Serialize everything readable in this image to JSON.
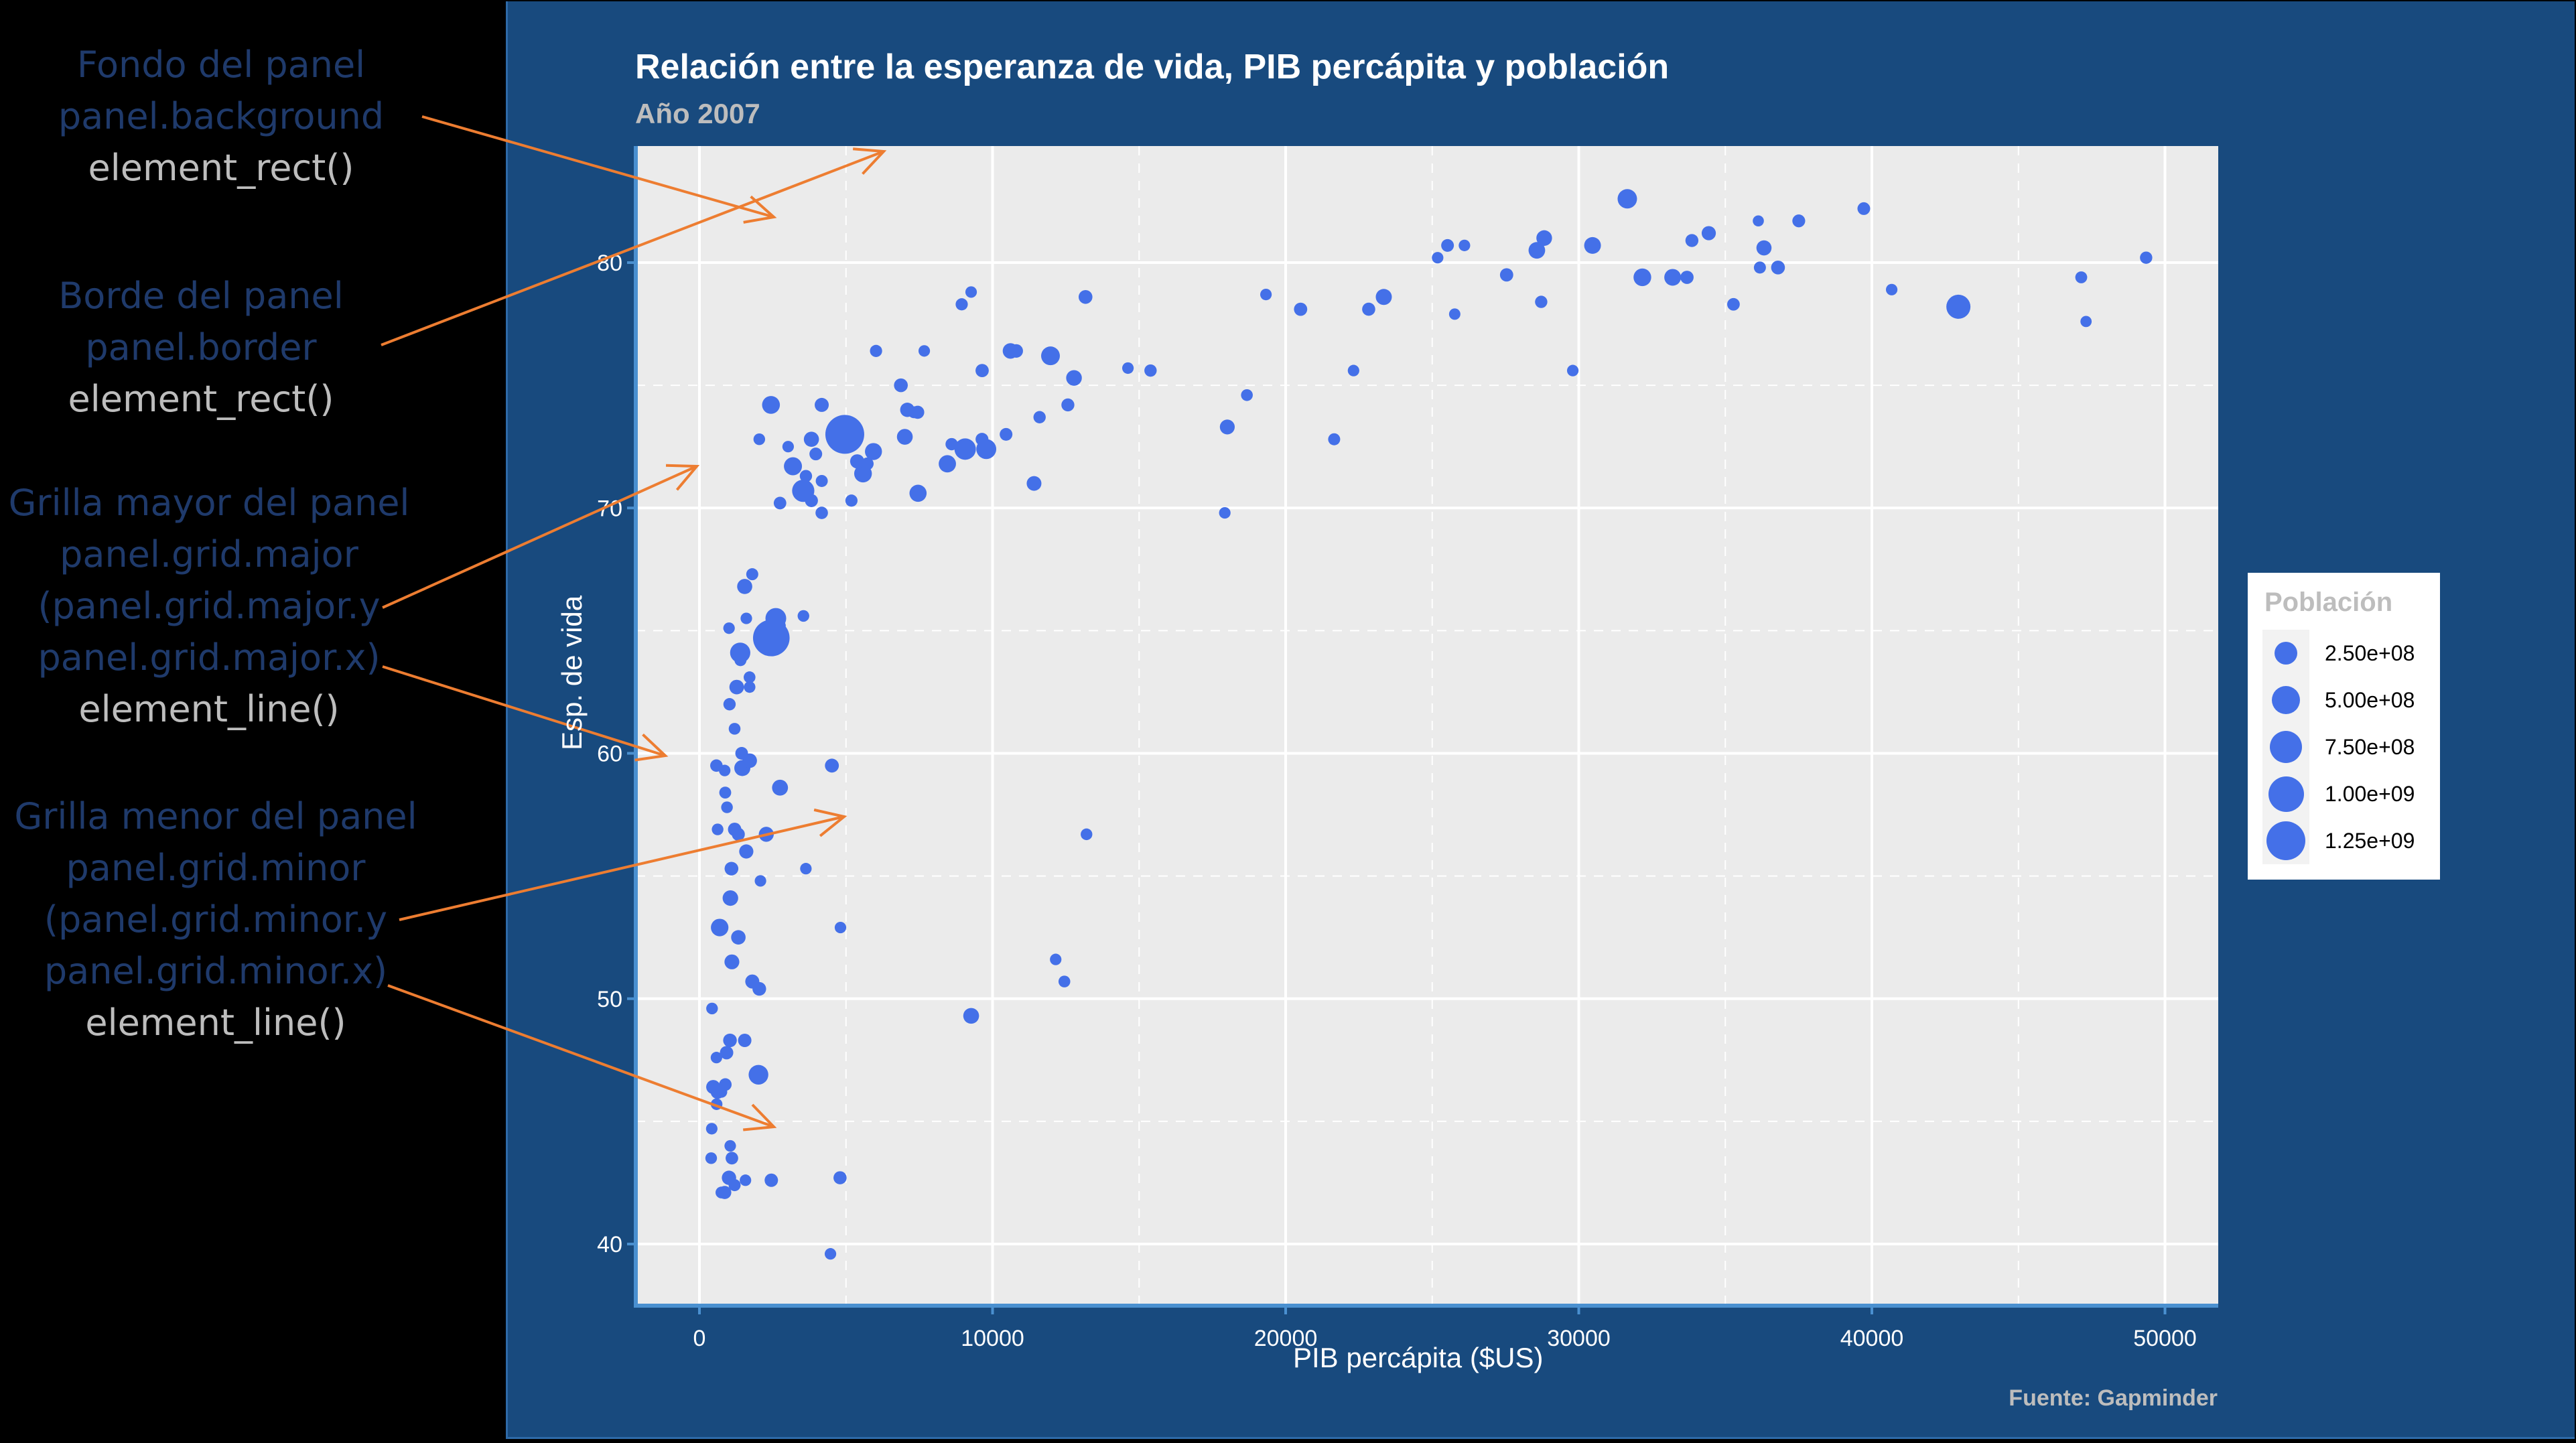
{
  "annotations": [
    {
      "title": "Fondo del panel",
      "param": "panel.background",
      "fn": "element_rect()"
    },
    {
      "title": "Borde del panel",
      "param": "panel.border",
      "fn": "element_rect()"
    },
    {
      "title": "Grilla mayor del panel",
      "param": "panel.grid.major",
      "param2": "(panel.grid.major.y",
      "param3": "panel.grid.major.x)",
      "fn": "element_line()"
    },
    {
      "title": "Grilla menor del panel",
      "param": "panel.grid.minor",
      "param2": "(panel.grid.minor.y",
      "param3": "panel.grid.minor.x)",
      "fn": "element_line()"
    }
  ],
  "arrows": [
    {
      "from": [
        630,
        174
      ],
      "to": [
        1155,
        324
      ]
    },
    {
      "from": [
        569,
        515
      ],
      "to": [
        1319,
        226
      ]
    },
    {
      "from": [
        571,
        907
      ],
      "to": [
        1040,
        696
      ]
    },
    {
      "from": [
        571,
        995
      ],
      "to": [
        993,
        1128
      ]
    },
    {
      "from": [
        596,
        1373
      ],
      "to": [
        1260,
        1219
      ]
    },
    {
      "from": [
        579,
        1471
      ],
      "to": [
        1155,
        1682
      ]
    }
  ],
  "colors": {
    "slide_bg": "#184a7e",
    "panel_bg": "#ebebeb",
    "grid": "#ffffff",
    "axis_line": "#4a90d0",
    "point": "#4470e8",
    "arrow": "#ed7d31"
  },
  "legend": {
    "title": "Población",
    "items": [
      {
        "label": "2.50e+08",
        "value": 250000000
      },
      {
        "label": "5.00e+08",
        "value": 500000000
      },
      {
        "label": "7.50e+08",
        "value": 750000000
      },
      {
        "label": "1.00e+09",
        "value": 1000000000
      },
      {
        "label": "1.25e+09",
        "value": 1250000000
      }
    ]
  },
  "chart_data": {
    "type": "scatter",
    "title": "Relación entre la esperanza de vida, PIB percápita y población",
    "subtitle": "Año 2007",
    "caption": "Fuente: Gapminder",
    "xlabel": "PIB percápita ($US)",
    "ylabel": "Esp. de vida",
    "size_legend_title": "Población",
    "xlim": [
      -2200,
      52000
    ],
    "ylim": [
      37.4,
      84.7
    ],
    "x_ticks": [
      0,
      10000,
      20000,
      30000,
      40000,
      50000
    ],
    "x_tick_labels": [
      "0",
      "10000",
      "20000",
      "30000",
      "40000",
      "50000"
    ],
    "y_ticks": [
      40,
      50,
      60,
      70,
      80
    ],
    "y_tick_labels": [
      "40",
      "50",
      "60",
      "70",
      "80"
    ],
    "x_minor": [
      5000,
      15000,
      25000,
      35000,
      45000
    ],
    "y_minor": [
      45,
      55,
      65,
      75
    ],
    "grid": true,
    "legend_position": "right",
    "points": [
      {
        "x": 4959,
        "y": 73.0,
        "pop": 1318683096
      },
      {
        "x": 2452,
        "y": 64.7,
        "pop": 1110396331
      },
      {
        "x": 42952,
        "y": 78.2,
        "pop": 301139947
      },
      {
        "x": 3541,
        "y": 70.7,
        "pop": 223547000
      },
      {
        "x": 9066,
        "y": 72.4,
        "pop": 190010647
      },
      {
        "x": 2606,
        "y": 65.5,
        "pop": 169270617
      },
      {
        "x": 1391,
        "y": 64.1,
        "pop": 150448339
      },
      {
        "x": 2014,
        "y": 46.9,
        "pop": 135031164
      },
      {
        "x": 31656,
        "y": 82.6,
        "pop": 127467972
      },
      {
        "x": 11977,
        "y": 76.2,
        "pop": 108700891
      },
      {
        "x": 9786,
        "y": 72.4,
        "pop": 141000000
      },
      {
        "x": 3190,
        "y": 71.7,
        "pop": 91077287
      },
      {
        "x": 2441,
        "y": 74.2,
        "pop": 85262356
      },
      {
        "x": 5581,
        "y": 71.4,
        "pop": 80264543
      },
      {
        "x": 690,
        "y": 52.9,
        "pop": 76511887
      },
      {
        "x": 8458,
        "y": 71.8,
        "pop": 71158647
      },
      {
        "x": 32170,
        "y": 79.4,
        "pop": 82400996
      },
      {
        "x": 7458,
        "y": 70.6,
        "pop": 69453570
      },
      {
        "x": 5937,
        "y": 72.3,
        "pop": 65068149
      },
      {
        "x": 30470,
        "y": 80.7,
        "pop": 61083916
      },
      {
        "x": 33203,
        "y": 79.4,
        "pop": 60776238
      },
      {
        "x": 28570,
        "y": 80.5,
        "pop": 58147733
      },
      {
        "x": 2749,
        "y": 58.6,
        "pop": 46000000
      },
      {
        "x": 23348,
        "y": 78.6,
        "pop": 49044790
      },
      {
        "x": 9270,
        "y": 49.3,
        "pop": 43997828
      },
      {
        "x": 7007,
        "y": 72.9,
        "pop": 44227550
      },
      {
        "x": 1463,
        "y": 59.4,
        "pop": 47761980
      },
      {
        "x": 28821,
        "y": 81.0,
        "pop": 40448191
      },
      {
        "x": 12779,
        "y": 75.3,
        "pop": 40301927
      },
      {
        "x": 1056,
        "y": 54.1,
        "pop": 38139640
      },
      {
        "x": 36319,
        "y": 80.6,
        "pop": 33390141
      },
      {
        "x": 1544,
        "y": 66.8,
        "pop": 31889923
      },
      {
        "x": 10612,
        "y": 76.4,
        "pop": 38518241
      },
      {
        "x": 2452,
        "y": 42.6,
        "pop": 12000000
      },
      {
        "x": 1107,
        "y": 51.5,
        "pop": 29170398
      },
      {
        "x": 1008,
        "y": 42.7,
        "pop": 22000000
      },
      {
        "x": 11416,
        "y": 71.0,
        "pop": 27000000
      },
      {
        "x": 3820,
        "y": 72.8,
        "pop": 33000000
      },
      {
        "x": 2280,
        "y": 56.7,
        "pop": 30000000
      },
      {
        "x": 1271,
        "y": 62.7,
        "pop": 26000000
      },
      {
        "x": 34435,
        "y": 81.2,
        "pop": 20434176
      },
      {
        "x": 18009,
        "y": 73.3,
        "pop": 28901790
      },
      {
        "x": 1598,
        "y": 56.0,
        "pop": 20000000
      },
      {
        "x": 1328,
        "y": 52.5,
        "pop": 23000000
      },
      {
        "x": 7092,
        "y": 74.0,
        "pop": 22276056
      },
      {
        "x": 5383,
        "y": 71.9,
        "pop": 20000000
      },
      {
        "x": 4172,
        "y": 74.2,
        "pop": 19000000
      },
      {
        "x": 1714,
        "y": 59.7,
        "pop": 25000000
      },
      {
        "x": 470,
        "y": 46.4,
        "pop": 19000000
      },
      {
        "x": 1803,
        "y": 50.7,
        "pop": 19000000
      },
      {
        "x": 619,
        "y": 46.2,
        "pop": 17000000
      },
      {
        "x": 13172,
        "y": 78.6,
        "pop": 16000000
      },
      {
        "x": 36798,
        "y": 79.8,
        "pop": 16500000
      },
      {
        "x": 1091,
        "y": 55.3,
        "pop": 15000000
      },
      {
        "x": 4519,
        "y": 59.5,
        "pop": 17000000
      },
      {
        "x": 6873,
        "y": 75.0,
        "pop": 16000000
      },
      {
        "x": 1042,
        "y": 48.3,
        "pop": 14000000
      },
      {
        "x": 2042,
        "y": 50.4,
        "pop": 15000000
      },
      {
        "x": 10808,
        "y": 76.4,
        "pop": 13000000
      },
      {
        "x": 1201,
        "y": 56.9,
        "pop": 12000000
      },
      {
        "x": 1545,
        "y": 48.3,
        "pop": 12000000
      },
      {
        "x": 926,
        "y": 47.8,
        "pop": 12000000
      },
      {
        "x": 863,
        "y": 42.1,
        "pop": 10000000
      },
      {
        "x": 9645,
        "y": 75.6,
        "pop": 11000000
      },
      {
        "x": 33692,
        "y": 79.4,
        "pop": 10392226
      },
      {
        "x": 27538,
        "y": 79.5,
        "pop": 10706290
      },
      {
        "x": 22833,
        "y": 78.1,
        "pop": 10228744
      },
      {
        "x": 20510,
        "y": 78.1,
        "pop": 10642836
      },
      {
        "x": 18008,
        "y": 73.3,
        "pop": 9956108
      },
      {
        "x": 33860,
        "y": 80.9,
        "pop": 9031088
      },
      {
        "x": 12570,
        "y": 74.2,
        "pop": 9000000
      },
      {
        "x": 1327,
        "y": 56.7,
        "pop": 9000000
      },
      {
        "x": 3821,
        "y": 70.3,
        "pop": 9000000
      },
      {
        "x": 7446,
        "y": 73.9,
        "pop": 10000000
      },
      {
        "x": 10461,
        "y": 73.0,
        "pop": 7000000
      },
      {
        "x": 37506,
        "y": 81.7,
        "pop": 7554661
      },
      {
        "x": 39725,
        "y": 82.2,
        "pop": 7000000
      },
      {
        "x": 25523,
        "y": 80.7,
        "pop": 6400000
      },
      {
        "x": 4172,
        "y": 69.8,
        "pop": 5000000
      },
      {
        "x": 3970,
        "y": 72.2,
        "pop": 6500000
      },
      {
        "x": 1107,
        "y": 43.5,
        "pop": 6000000
      },
      {
        "x": 883,
        "y": 46.5,
        "pop": 6000000
      },
      {
        "x": 2749,
        "y": 70.2,
        "pop": 6000000
      },
      {
        "x": 35278,
        "y": 78.3,
        "pop": 5500000
      },
      {
        "x": 4797,
        "y": 42.7,
        "pop": 10000000
      },
      {
        "x": 1107,
        "y": 55.3,
        "pop": 8000000
      },
      {
        "x": 1441,
        "y": 60.0,
        "pop": 7000000
      },
      {
        "x": 579,
        "y": 59.5,
        "pop": 5000000
      },
      {
        "x": 11605,
        "y": 73.7,
        "pop": 4500000
      },
      {
        "x": 12451,
        "y": 50.7,
        "pop": 2000000
      },
      {
        "x": 13206,
        "y": 56.7,
        "pop": 1500000
      },
      {
        "x": 12154,
        "y": 51.6,
        "pop": 1000000
      },
      {
        "x": 14619,
        "y": 75.7,
        "pop": 1000000
      },
      {
        "x": 15390,
        "y": 75.6,
        "pop": 4000000
      },
      {
        "x": 19328,
        "y": 78.7,
        "pop": 1000000
      },
      {
        "x": 21655,
        "y": 72.8,
        "pop": 3000000
      },
      {
        "x": 18678,
        "y": 74.6,
        "pop": 2000000
      },
      {
        "x": 17924,
        "y": 69.8,
        "pop": 1000000
      },
      {
        "x": 22316,
        "y": 75.6,
        "pop": 1000000
      },
      {
        "x": 25185,
        "y": 80.2,
        "pop": 1000000
      },
      {
        "x": 28718,
        "y": 78.4,
        "pop": 4000000
      },
      {
        "x": 29796,
        "y": 75.6,
        "pop": 1000000
      },
      {
        "x": 36126,
        "y": 81.7,
        "pop": 300000
      },
      {
        "x": 36180,
        "y": 79.8,
        "pop": 3000000
      },
      {
        "x": 40676,
        "y": 78.9,
        "pop": 1000000
      },
      {
        "x": 47143,
        "y": 79.4,
        "pop": 2500000
      },
      {
        "x": 47307,
        "y": 77.6,
        "pop": 500000
      },
      {
        "x": 49357,
        "y": 80.2,
        "pop": 4600000
      },
      {
        "x": 25768,
        "y": 77.9,
        "pop": 700000
      },
      {
        "x": 26100,
        "y": 80.7,
        "pop": 1000000
      },
      {
        "x": 8948,
        "y": 78.3,
        "pop": 3500000
      },
      {
        "x": 9269,
        "y": 78.8,
        "pop": 1200000
      },
      {
        "x": 9640,
        "y": 72.8,
        "pop": 7500000
      },
      {
        "x": 7670,
        "y": 76.4,
        "pop": 1000000
      },
      {
        "x": 6025,
        "y": 76.4,
        "pop": 3500000
      },
      {
        "x": 7320,
        "y": 73.9,
        "pop": 2500000
      },
      {
        "x": 4173,
        "y": 71.1,
        "pop": 3000000
      },
      {
        "x": 5728,
        "y": 71.8,
        "pop": 6000000
      },
      {
        "x": 8605,
        "y": 72.6,
        "pop": 4000000
      },
      {
        "x": 5186,
        "y": 70.3,
        "pop": 3600000
      },
      {
        "x": 3633,
        "y": 71.3,
        "pop": 4000000
      },
      {
        "x": 2042,
        "y": 72.8,
        "pop": 1500000
      },
      {
        "x": 3026,
        "y": 72.5,
        "pop": 1000000
      },
      {
        "x": 1713,
        "y": 62.7,
        "pop": 1000000
      },
      {
        "x": 2749,
        "y": 65.2,
        "pop": 1000000
      },
      {
        "x": 3548,
        "y": 65.6,
        "pop": 1500000
      },
      {
        "x": 1600,
        "y": 65.5,
        "pop": 1000000
      },
      {
        "x": 1010,
        "y": 65.1,
        "pop": 1000000
      },
      {
        "x": 1802,
        "y": 67.3,
        "pop": 3000000
      },
      {
        "x": 1400,
        "y": 63.8,
        "pop": 3000000
      },
      {
        "x": 1200,
        "y": 61.0,
        "pop": 2000000
      },
      {
        "x": 1027,
        "y": 62.0,
        "pop": 4000000
      },
      {
        "x": 880,
        "y": 58.4,
        "pop": 2500000
      },
      {
        "x": 940,
        "y": 57.8,
        "pop": 1500000
      },
      {
        "x": 620,
        "y": 56.9,
        "pop": 1500000
      },
      {
        "x": 2082,
        "y": 54.8,
        "pop": 1200000
      },
      {
        "x": 862,
        "y": 59.3,
        "pop": 1000000
      },
      {
        "x": 1710,
        "y": 63.1,
        "pop": 2000000
      },
      {
        "x": 3632,
        "y": 55.3,
        "pop": 1000000
      },
      {
        "x": 4811,
        "y": 52.9,
        "pop": 1000000
      },
      {
        "x": 430,
        "y": 49.6,
        "pop": 1500000
      },
      {
        "x": 750,
        "y": 46.2,
        "pop": 1500000
      },
      {
        "x": 586,
        "y": 45.7,
        "pop": 1500000
      },
      {
        "x": 420,
        "y": 44.7,
        "pop": 1000000
      },
      {
        "x": 1050,
        "y": 44.0,
        "pop": 1000000
      },
      {
        "x": 1200,
        "y": 42.4,
        "pop": 3000000
      },
      {
        "x": 1570,
        "y": 42.6,
        "pop": 1000000
      },
      {
        "x": 4470,
        "y": 39.6,
        "pop": 1000000
      },
      {
        "x": 580,
        "y": 47.6,
        "pop": 1000000
      },
      {
        "x": 750,
        "y": 42.1,
        "pop": 2000000
      },
      {
        "x": 400,
        "y": 43.5,
        "pop": 1500000
      }
    ]
  }
}
